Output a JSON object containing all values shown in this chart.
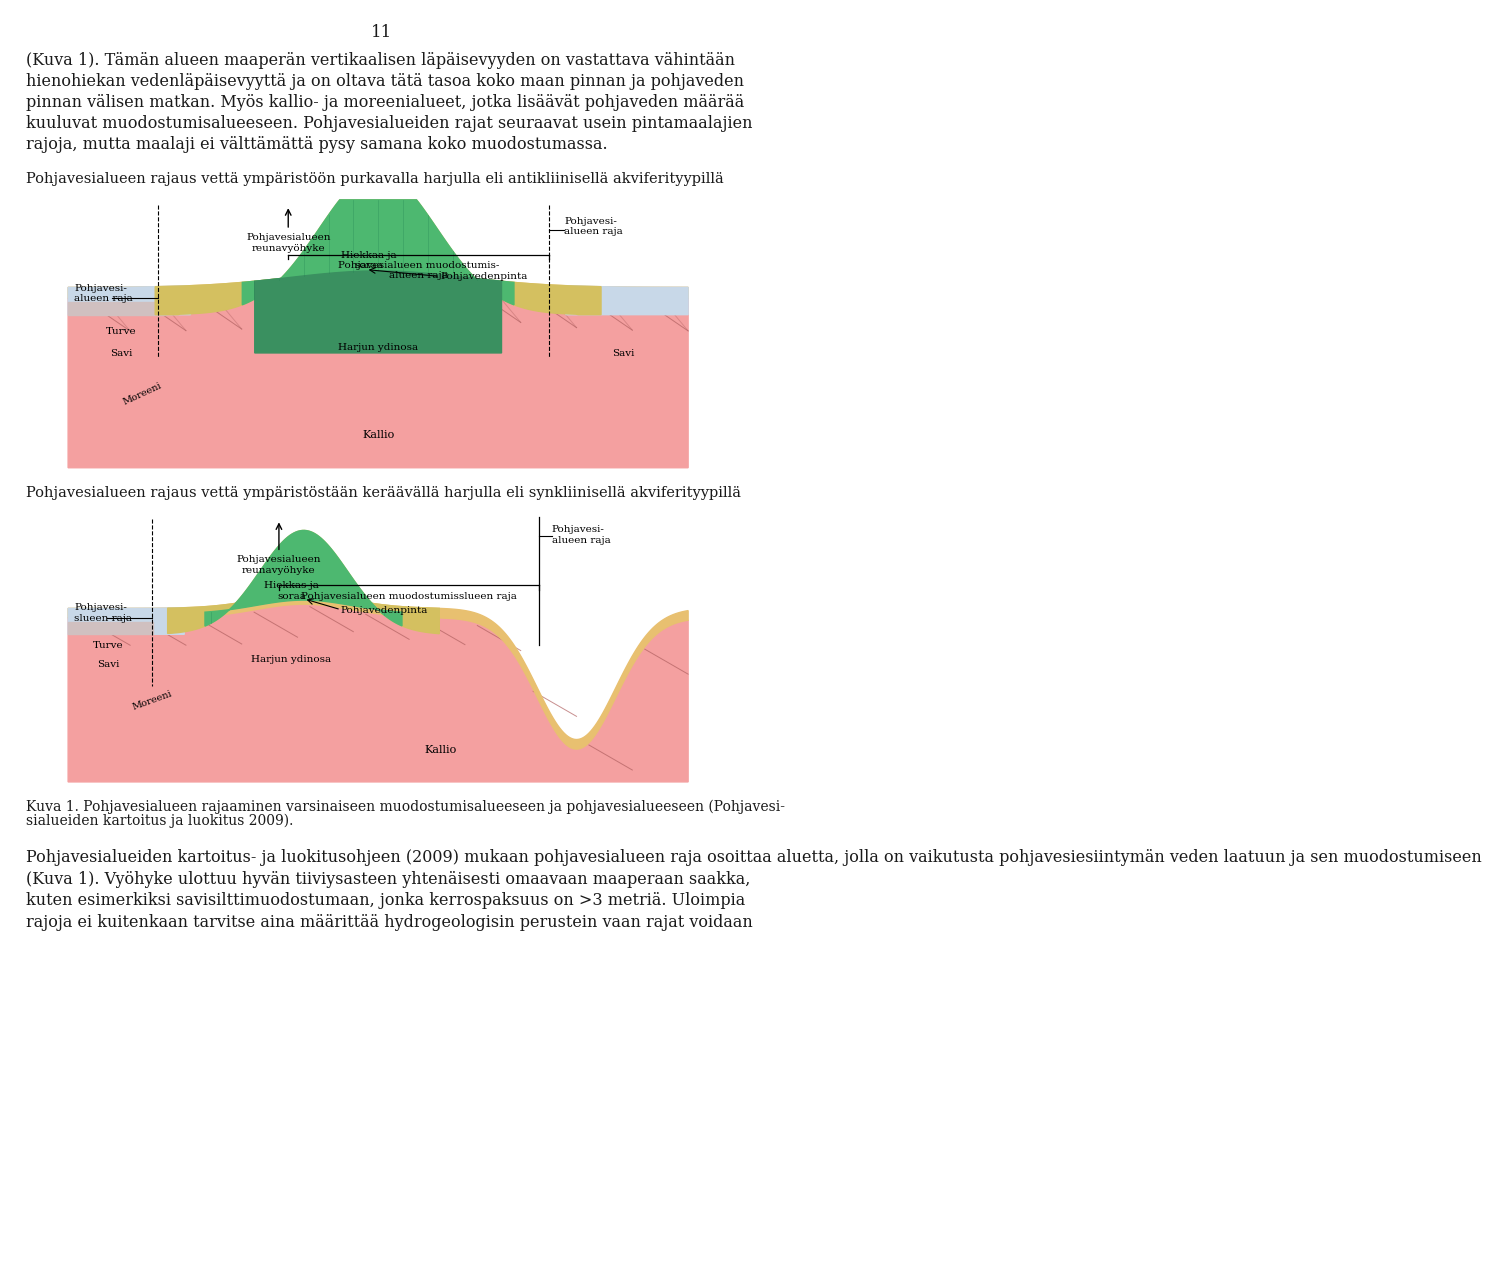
{
  "page_number": "11",
  "bg_color": "#ffffff",
  "text_color": "#1a1a1a",
  "para1_lines": [
    "(Kuva 1). Tämän alueen maaperän vertikaalisen läpäisevyyden on vastattava vähintään",
    "hienohiekan vedenläpäisevyyttä ja on oltava tätä tasoa koko maan pinnan ja pohjaveden",
    "pinnan välisen matkan. Myös kallio- ja moreenialueet, jotka lisäävät pohjaveden määrää",
    "kuuluvat muodostumisalueeseen. Pohjavesialueiden rajat seuraavat usein pintamaalajien",
    "rajoja, mutta maalaji ei välttämättä pysy samana koko muodostumassa."
  ],
  "diagram1_title": "Pohjavesialueen rajaus vettä ympäristöön purkavalla harjulla eli antikliinisellä akviferityypillä",
  "diagram2_title": "Pohjavesialueen rajaus vettä ympäristöstään keräävällä harjulla eli synkliinisellä akviferityypillä",
  "caption_line1": "Kuva 1. Pohjavesialueen rajaaminen varsinaiseen muodostumisalueeseen ja pohjavesialueeseen (Pohjavesi-",
  "caption_line2": "sialueiden kartoitus ja luokitus 2009).",
  "para2_lines": [
    "Pohjavesialueiden kartoitus- ja luokitusohjeen (2009) mukaan pohjavesialueen raja osoittaa aluetta, jolla on vaikutusta pohjavesiesiintymän veden laatuun ja sen muodostumiseen",
    "(Kuva 1). Vyöhyke ulottuu hyvän tiiviysasteen yhtenäisesti omaavaan maaperaan saakka,",
    "kuten esimerkiksi savisilttimuodostumaan, jonka kerrospaksuus on >3 metriä. Uloimpia",
    "rajoja ei kuitenkaan tarvitse aina määrittää hydrogeologisin perustein vaan rajat voidaan"
  ],
  "kallio_color": "#f4a0a0",
  "moreeni_color": "#e8c070",
  "savi_color": "#c8d8e8",
  "turve_color": "#d0c0c0",
  "hiekka_color": "#4db870",
  "hienohiekka_color": "#d4c060",
  "hiekka_dark_color": "#3a9060"
}
